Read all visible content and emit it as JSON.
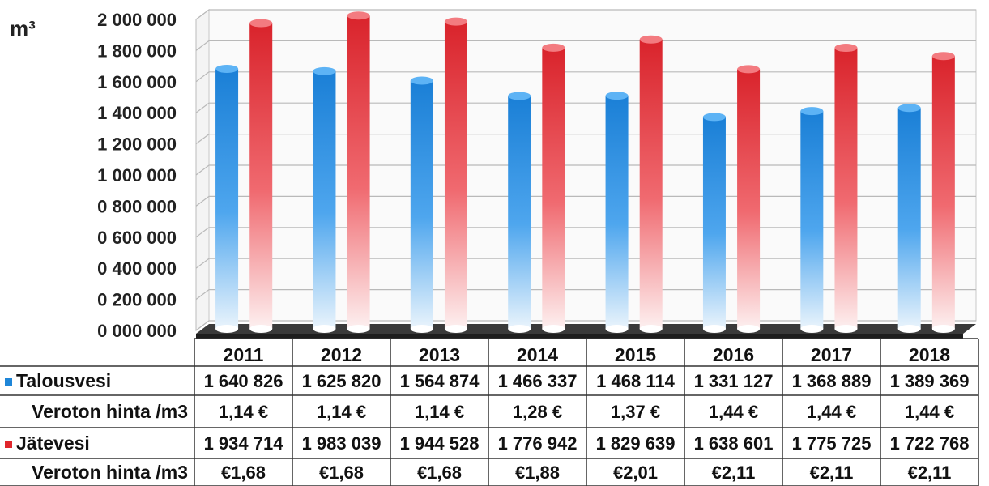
{
  "chart_data": {
    "type": "bar",
    "title": "",
    "unit_label": "m³",
    "categories": [
      "2011",
      "2012",
      "2013",
      "2014",
      "2015",
      "2016",
      "2017",
      "2018"
    ],
    "ylim": [
      0,
      2000000
    ],
    "y_ticks": [
      "0 000 000",
      "0 200 000",
      "0 400 000",
      "0 600 000",
      "0 800 000",
      "1 000 000",
      "1 200 000",
      "1 400 000",
      "1 600 000",
      "1 800 000",
      "2 000 000"
    ],
    "grid": true,
    "series": [
      {
        "name": "Talousvesi",
        "color": "#1f86d8",
        "values": [
          1640826,
          1625820,
          1564874,
          1466337,
          1468114,
          1331127,
          1368889,
          1389369
        ],
        "labels": [
          "1 640 826",
          "1 625 820",
          "1 564 874",
          "1 466 337",
          "1 468 114",
          "1 331 127",
          "1 368 889",
          "1 389 369"
        ]
      },
      {
        "name": "Jätevesi",
        "color": "#e0262c",
        "values": [
          1934714,
          1983039,
          1944528,
          1776942,
          1829639,
          1638601,
          1775725,
          1722768
        ],
        "labels": [
          "1 934 714",
          "1 983 039",
          "1 944 528",
          "1 776 942",
          "1 829 639",
          "1 638 601",
          "1 775 725",
          "1 722 768"
        ]
      }
    ],
    "table": {
      "rows": [
        {
          "label": "Talousvesi",
          "legend_color": "#1f86d8",
          "series_index": 0
        },
        {
          "label": "Veroton hinta /m3",
          "values": [
            "1,14 €",
            "1,14 €",
            "1,14 €",
            "1,28 €",
            "1,37 €",
            "1,44 €",
            "1,44 €",
            "1,44 €"
          ]
        },
        {
          "label": "Jätevesi",
          "legend_color": "#e0262c",
          "series_index": 1
        },
        {
          "label": "Veroton hinta /m3",
          "values": [
            "€1,68",
            "€1,68",
            "€1,68",
            "€1,88",
            "€2,01",
            "€2,11",
            "€2,11",
            "€2,11"
          ]
        }
      ]
    }
  }
}
